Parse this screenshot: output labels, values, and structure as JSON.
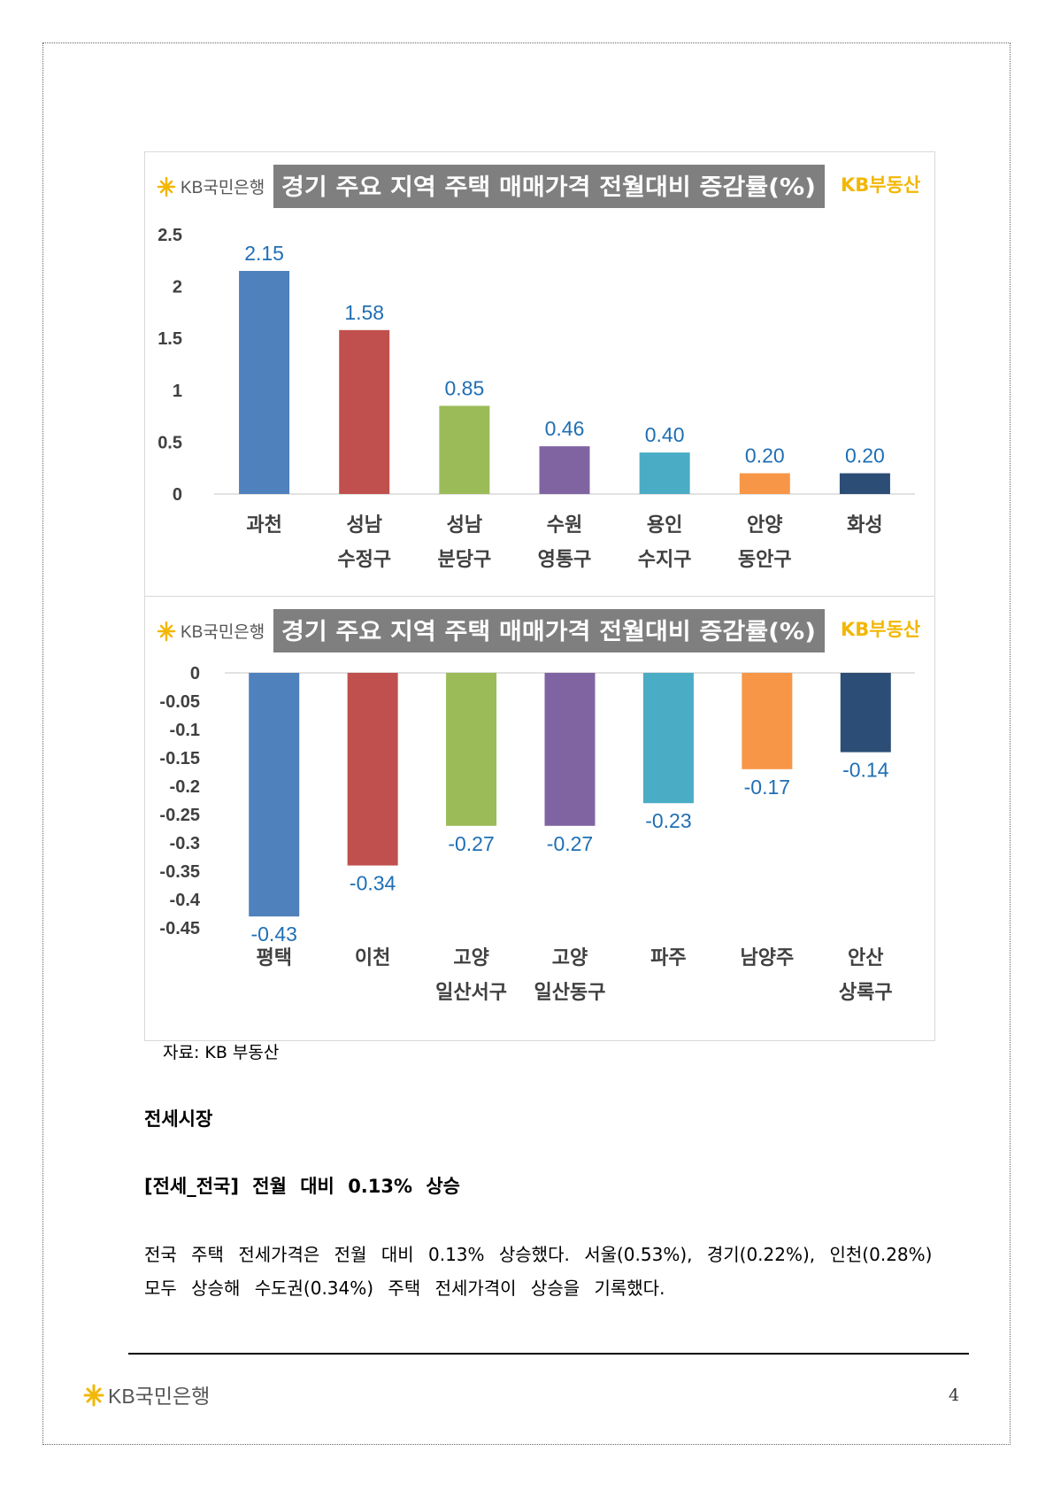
{
  "chart_data": [
    {
      "type": "bar",
      "title": "경기 주요 지역 주택 매매가격 전월대비 증감률(%)",
      "logo": "KB국민은행",
      "brand": "KB부동산",
      "categories": [
        [
          "과천"
        ],
        [
          "성남",
          "수정구"
        ],
        [
          "성남",
          "분당구"
        ],
        [
          "수원",
          "영통구"
        ],
        [
          "용인",
          "수지구"
        ],
        [
          "안양",
          "동안구"
        ],
        [
          "화성"
        ]
      ],
      "values": [
        2.15,
        1.58,
        0.85,
        0.46,
        0.4,
        0.2,
        0.2
      ],
      "value_labels": [
        "2.15",
        "1.58",
        "0.85",
        "0.46",
        "0.40",
        "0.20",
        "0.20"
      ],
      "colors": [
        "#4f81bd",
        "#c0504d",
        "#9bbb59",
        "#8064a2",
        "#4bacc6",
        "#f79646",
        "#2c4d75"
      ],
      "yticks": [
        "0",
        "0.5",
        "1",
        "1.5",
        "2",
        "2.5"
      ],
      "ylim": [
        0,
        2.5
      ],
      "grid": false
    },
    {
      "type": "bar",
      "title": "경기 주요 지역 주택 매매가격 전월대비 증감률(%)",
      "logo": "KB국민은행",
      "brand": "KB부동산",
      "categories": [
        [
          "평택"
        ],
        [
          "이천"
        ],
        [
          "고양",
          "일산서구"
        ],
        [
          "고양",
          "일산동구"
        ],
        [
          "파주"
        ],
        [
          "남양주"
        ],
        [
          "안산",
          "상록구"
        ]
      ],
      "values": [
        -0.43,
        -0.34,
        -0.27,
        -0.27,
        -0.23,
        -0.17,
        -0.14
      ],
      "value_labels": [
        "-0.43",
        "-0.34",
        "-0.27",
        "-0.27",
        "-0.23",
        "-0.17",
        "-0.14"
      ],
      "colors": [
        "#4f81bd",
        "#c0504d",
        "#9bbb59",
        "#8064a2",
        "#4bacc6",
        "#f79646",
        "#2c4d75"
      ],
      "yticks": [
        "0",
        "-0.05",
        "-0.1",
        "-0.15",
        "-0.2",
        "-0.25",
        "-0.3",
        "-0.35",
        "-0.4",
        "-0.45"
      ],
      "ylim": [
        -0.45,
        0
      ],
      "grid": false
    }
  ],
  "source": "자료: KB 부동산",
  "section_title": "전세시장",
  "subheading": "[전세_전국] 전월 대비 0.13% 상승",
  "paragraph": "전국 주택 전세가격은 전월 대비 0.13% 상승했다. 서울(0.53%), 경기(0.22%), 인천(0.28%) 모두 상승해 수도권(0.34%) 주택 전세가격이 상승을 기록했다.",
  "footer": {
    "logo": "KB국민은행",
    "page_number": "4"
  },
  "colors": {
    "logo_star": "#f2b705",
    "title_bg": "#7f7f7f",
    "data_label": "#1f6fb4"
  }
}
